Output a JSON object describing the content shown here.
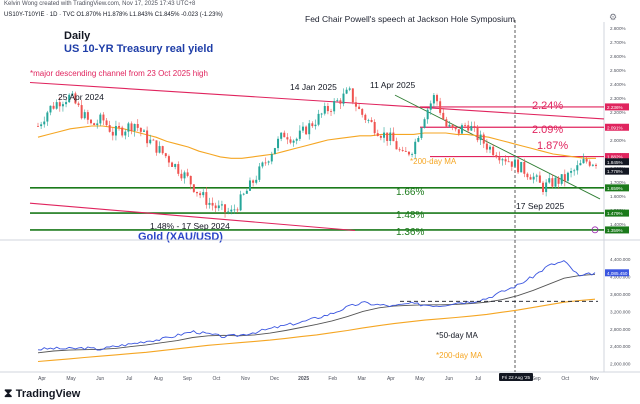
{
  "header": {
    "credit": "Kelvin Wong created with TradingView.com, Nov 17, 2025 17:43 UTC+8",
    "symbol_line": "US10Y-T10YIE · 1D · TVC  O1.870%  H1.878%  L1.843%  C1.845%  -0.023 (-1.23%)",
    "event_note": "Fed Chair Powell's speech at Jackson Hole Symposium",
    "timeframe": "Daily",
    "title": "US 10-YR Treasury real yield",
    "settings_icon": "gear-icon"
  },
  "annotations": {
    "channel_note": "*major descending channel from 23 Oct 2025 high",
    "peak1": "25 Apr 2024",
    "peak2": "14 Jan 2025",
    "peak3": "11 Apr 2025",
    "trough1": "1.48% - 17 Sep 2024",
    "trough2": "17 Sep 2025",
    "ma200_label": "*200-day MA",
    "level_224": "2.24%",
    "level_209": "2.09%",
    "level_187": "1.87%",
    "level_166": "1.66%",
    "level_148": "1.48%",
    "level_136": "1.36%"
  },
  "gold": {
    "title": "Gold (XAU/USD)",
    "ma50_label": "*50-day MA",
    "ma200_label": "*200-day MA"
  },
  "footer": {
    "logo": "TradingView",
    "date_badge": "Fri 22 Aug '25"
  },
  "colors": {
    "up": "#26a69a",
    "down": "#ef5350",
    "ma200": "#f5a623",
    "ma50": "#555555",
    "level_red": "#e0245e",
    "level_green": "#1b7a1b",
    "gold_line": "#3b56e0",
    "channel": "#e0245e"
  },
  "chart_data": [
    {
      "type": "candlestick",
      "title": "US 10-YR Treasury real yield",
      "ylabel": "%",
      "ylim": [
        1.33,
        2.82
      ],
      "x_ticks": [
        "Apr",
        "May",
        "Jun",
        "Jul",
        "Aug",
        "Sep",
        "Oct",
        "Nov",
        "Dec",
        "2025",
        "Feb",
        "Mar",
        "Apr",
        "May",
        "Jun",
        "Jul",
        "Aug",
        "Sep",
        "Oct",
        "Nov"
      ],
      "y_ticks": [
        "2.800%",
        "2.700%",
        "2.600%",
        "2.500%",
        "2.400%",
        "2.300%",
        "2.200%",
        "2.100%",
        "2.000%",
        "1.900%",
        "1.800%",
        "1.700%",
        "1.600%",
        "1.500%",
        "1.400%"
      ],
      "right_price_labels": [
        "2.236%",
        "2.091%",
        "1.882%",
        "1.845%",
        "1.778%",
        "1.659%",
        "1.479%",
        "1.359%"
      ],
      "horizontal_levels": [
        2.236,
        2.091,
        1.882,
        1.659,
        1.479,
        1.359
      ],
      "key_points": [
        {
          "label": "25 Apr 2024",
          "value": 2.31
        },
        {
          "label": "17 Sep 2024",
          "value": 1.48
        },
        {
          "label": "14 Jan 2025",
          "value": 2.34
        },
        {
          "label": "11 Apr 2025",
          "value": 2.32
        },
        {
          "label": "17 Sep 2025",
          "value": 1.66
        },
        {
          "label": "last close",
          "value": 1.845
        }
      ],
      "series": [
        {
          "name": "real yield (close)",
          "values": [
            2.1,
            2.22,
            2.28,
            2.31,
            2.2,
            2.1,
            2.15,
            2.05,
            2.08,
            2.12,
            2.02,
            1.95,
            1.88,
            1.8,
            1.72,
            1.62,
            1.55,
            1.5,
            1.48,
            1.58,
            1.7,
            1.82,
            1.95,
            2.05,
            2.0,
            2.08,
            2.15,
            2.22,
            2.28,
            2.34,
            2.2,
            2.12,
            2.05,
            2.0,
            1.88,
            1.95,
            2.18,
            2.32,
            2.1,
            2.05,
            2.12,
            2.02,
            1.95,
            1.9,
            1.85,
            1.8,
            1.75,
            1.66,
            1.7,
            1.72,
            1.78,
            1.85,
            1.845
          ]
        },
        {
          "name": "200-day MA",
          "values": [
            2.02,
            2.04,
            2.06,
            2.08,
            2.09,
            2.1,
            2.1,
            2.09,
            2.08,
            2.06,
            2.04,
            2.02,
            1.99,
            1.97,
            1.95,
            1.92,
            1.9,
            1.88,
            1.87,
            1.87,
            1.88,
            1.89,
            1.9,
            1.92,
            1.94,
            1.96,
            1.98,
            2.0,
            2.01,
            2.02,
            2.03,
            2.03,
            2.04,
            2.04,
            2.04,
            2.04,
            2.05,
            2.05,
            2.05,
            2.04,
            2.04,
            2.03,
            2.02,
            2.0,
            1.98,
            1.96,
            1.94,
            1.92,
            1.9,
            1.89,
            1.88,
            1.87,
            1.87
          ]
        }
      ]
    },
    {
      "type": "line",
      "title": "Gold (XAU/USD)",
      "ylim": [
        1900,
        4700
      ],
      "y_ticks": [
        "4,400.000",
        "4,000.000",
        "3,600.000",
        "3,200.000",
        "2,800.000",
        "2,400.000",
        "2,000.000"
      ],
      "price_label": "4,085.450",
      "series": [
        {
          "name": "Gold",
          "values": [
            2330,
            2350,
            2340,
            2360,
            2330,
            2400,
            2450,
            2520,
            2560,
            2650,
            2740,
            2680,
            2620,
            2650,
            2720,
            2800,
            2880,
            2950,
            3050,
            3150,
            3300,
            3400,
            3350,
            3320,
            3380,
            3350,
            3330,
            3400,
            3420,
            3500,
            3650,
            3800,
            4000,
            4250,
            4350,
            4000,
            4085
          ]
        },
        {
          "name": "50-day MA",
          "values": [
            2250,
            2290,
            2310,
            2320,
            2330,
            2350,
            2390,
            2430,
            2480,
            2530,
            2600,
            2640,
            2650,
            2640,
            2660,
            2700,
            2760,
            2830,
            2900,
            2980,
            3080,
            3200,
            3280,
            3320,
            3340,
            3350,
            3350,
            3360,
            3380,
            3410,
            3470,
            3560,
            3680,
            3820,
            3960,
            4020,
            4050
          ]
        },
        {
          "name": "200-day MA",
          "values": [
            2050,
            2080,
            2110,
            2140,
            2170,
            2200,
            2230,
            2260,
            2300,
            2340,
            2380,
            2420,
            2450,
            2480,
            2510,
            2540,
            2580,
            2620,
            2660,
            2710,
            2760,
            2820,
            2870,
            2920,
            2960,
            3000,
            3030,
            3060,
            3090,
            3130,
            3180,
            3230,
            3290,
            3350,
            3410,
            3450,
            3480
          ]
        }
      ]
    }
  ]
}
